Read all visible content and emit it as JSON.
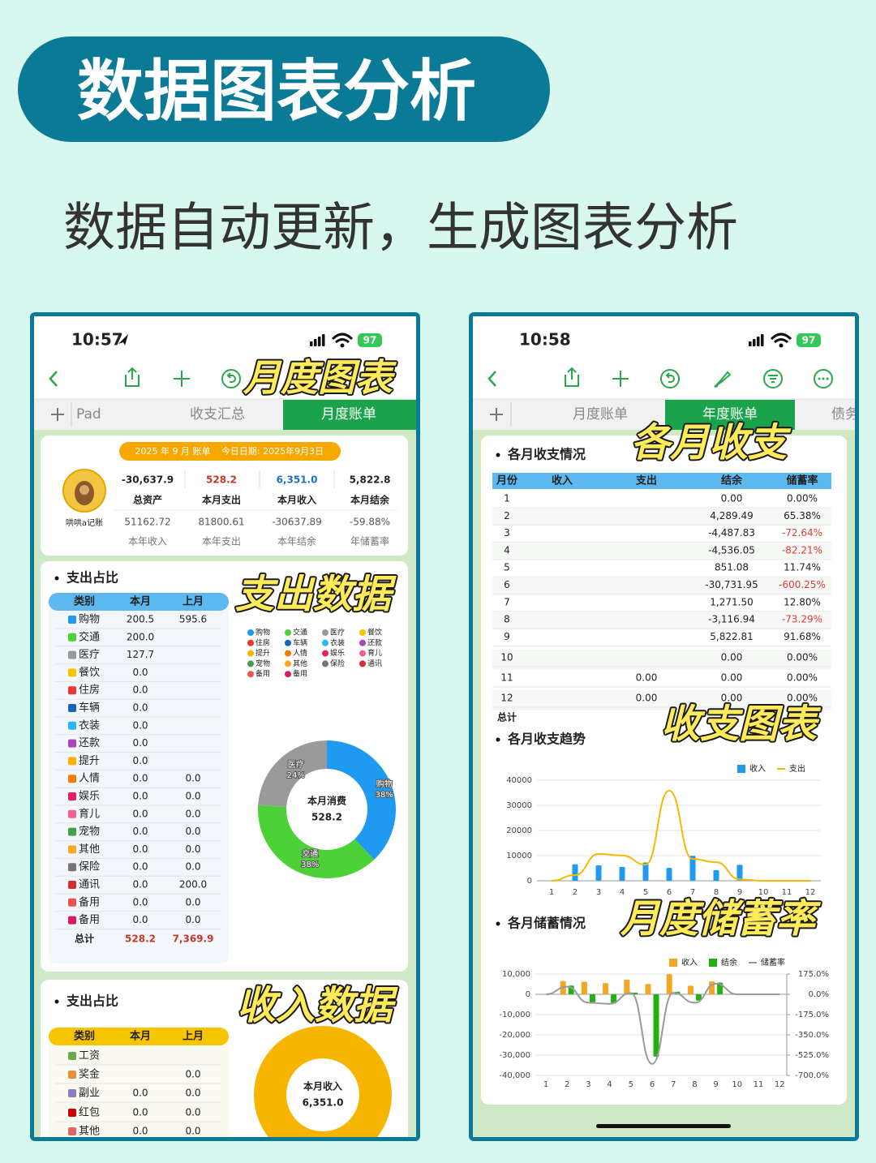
{
  "header": {
    "title": "数据图表分析",
    "subtitle": "数据自动更新，生成图表分析"
  },
  "left_phone": {
    "time": "10:57",
    "battery": "97",
    "tabs": [
      "Pad",
      "收支汇总",
      "月度账单"
    ],
    "callouts": [
      "月度图表",
      "支出数据",
      "收入数据"
    ],
    "summary": {
      "banner": "2025 年 9 月 账单",
      "today": "今日日期: 2025年9月3日",
      "app_name": "哄哄a记账",
      "stats": [
        {
          "value": "-30,637.9",
          "label": "总资产"
        },
        {
          "value": "528.2",
          "label": "本月支出"
        },
        {
          "value": "6,351.0",
          "label": "本月收入"
        },
        {
          "value": "5,822.8",
          "label": "本月结余"
        },
        {
          "value": "51162.72",
          "label": "本年收入"
        },
        {
          "value": "81800.61",
          "label": "本年支出"
        },
        {
          "value": "-30637.89",
          "label": "本年结余"
        },
        {
          "value": "-59.88%",
          "label": "年储蓄率"
        }
      ]
    },
    "expense": {
      "title": "支出占比",
      "columns": [
        "类别",
        "本月",
        "上月"
      ],
      "rows": [
        [
          "购物",
          "200.5",
          "595.6"
        ],
        [
          "交通",
          "200.0",
          null
        ],
        [
          "医疗",
          "127.7",
          null
        ],
        [
          "餐饮",
          "0.0",
          null
        ],
        [
          "住房",
          "0.0",
          null
        ],
        [
          "车辆",
          "0.0",
          null
        ],
        [
          "衣装",
          "0.0",
          null
        ],
        [
          "还款",
          "0.0",
          null
        ],
        [
          "提升",
          "0.0",
          null
        ],
        [
          "人情",
          "0.0",
          "0.0"
        ],
        [
          "娱乐",
          "0.0",
          "0.0"
        ],
        [
          "育儿",
          "0.0",
          "0.0"
        ],
        [
          "宠物",
          "0.0",
          "0.0"
        ],
        [
          "其他",
          "0.0",
          "0.0"
        ],
        [
          "保险",
          "0.0",
          "0.0"
        ],
        [
          "通讯",
          "0.0",
          "200.0"
        ],
        [
          "备用",
          "0.0",
          "0.0"
        ],
        [
          "备用",
          "0.0",
          "0.0"
        ]
      ],
      "total": [
        "总计",
        "528.2",
        "7,369.9"
      ]
    },
    "income": {
      "title": "支出占比",
      "columns": [
        "类别",
        "本月",
        "上月"
      ],
      "rows": [
        [
          "工资",
          null,
          null
        ],
        [
          "奖金",
          null,
          "0.0"
        ],
        [
          "副业",
          "0.0",
          "0.0"
        ],
        [
          "红包",
          "0.0",
          "0.0"
        ],
        [
          "其他",
          "0.0",
          "0.0"
        ]
      ]
    }
  },
  "right_phone": {
    "time": "10:58",
    "battery": "97",
    "tabs": [
      "月度账单",
      "年度账单",
      "债务"
    ],
    "callouts": [
      "各月收支",
      "收支图表",
      "月度储蓄率"
    ],
    "table": {
      "title": "各月收支情况",
      "columns": [
        "月份",
        "收入",
        "支出",
        "结余",
        "储蓄率"
      ],
      "rows": [
        [
          "1",
          null,
          null,
          "0.00",
          "0.00%"
        ],
        [
          "2",
          null,
          null,
          "4,289.49",
          "65.38%"
        ],
        [
          "3",
          null,
          null,
          "-4,487.83",
          "-72.64%"
        ],
        [
          "4",
          null,
          null,
          "-4,536.05",
          "-82.21%"
        ],
        [
          "5",
          null,
          null,
          "851.08",
          "11.74%"
        ],
        [
          "6",
          null,
          null,
          "-30,731.95",
          "-600.25%"
        ],
        [
          "7",
          null,
          null,
          "1,271.50",
          "12.80%"
        ],
        [
          "8",
          null,
          null,
          "-3,116.94",
          "-73.29%"
        ],
        [
          "9",
          null,
          null,
          "5,822.81",
          "91.68%"
        ],
        [
          "10",
          null,
          null,
          "0.00",
          "0.00%"
        ],
        [
          "11",
          null,
          "0.00",
          "0.00",
          "0.00%"
        ],
        [
          "12",
          null,
          "0.00",
          "0.00",
          "0.00%"
        ]
      ],
      "total_label": "总计"
    }
  },
  "chart_data": [
    {
      "type": "pie",
      "center_label": "本月消费",
      "center_value": "528.2",
      "categories": [
        "购物",
        "交通",
        "医疗"
      ],
      "values": [
        38,
        38,
        24
      ],
      "value_labels": [
        "38%",
        "38%",
        "24%"
      ],
      "colors": [
        "#1e9bf0",
        "#4cd137",
        "#9a9a9a"
      ],
      "legend": [
        {
          "name": "购物",
          "color": "#1e9bf0"
        },
        {
          "name": "交通",
          "color": "#4cd137"
        },
        {
          "name": "医疗",
          "color": "#9a9a9a"
        },
        {
          "name": "餐饮",
          "color": "#f5c400"
        },
        {
          "name": "住房",
          "color": "#e53935"
        },
        {
          "name": "车辆",
          "color": "#1565c0"
        },
        {
          "name": "衣装",
          "color": "#29b6f6"
        },
        {
          "name": "还款",
          "color": "#ab47bc"
        },
        {
          "name": "提升",
          "color": "#ffb300"
        },
        {
          "name": "人情",
          "color": "#f57c00"
        },
        {
          "name": "娱乐",
          "color": "#e91e63"
        },
        {
          "name": "育儿",
          "color": "#f06292"
        },
        {
          "name": "宠物",
          "color": "#43a047"
        },
        {
          "name": "其他",
          "color": "#f9a825"
        },
        {
          "name": "保险",
          "color": "#757575"
        },
        {
          "name": "通讯",
          "color": "#d32f2f"
        },
        {
          "name": "备用",
          "color": "#ef5350"
        },
        {
          "name": "备用",
          "color": "#d81b60"
        }
      ]
    },
    {
      "type": "pie",
      "center_label": "本月收入",
      "center_value": "6,351.0",
      "values": [
        100
      ],
      "colors": [
        "#f7b500"
      ]
    },
    {
      "type": "bar",
      "title": "各月收支趋势",
      "categories": [
        "1",
        "2",
        "3",
        "4",
        "5",
        "6",
        "7",
        "8",
        "9",
        "10",
        "11",
        "12"
      ],
      "series": [
        {
          "name": "收入",
          "type": "bar",
          "color": "#1e9bf0",
          "values": [
            0,
            6560,
            6178,
            5518,
            7249,
            5120,
            9934,
            4253,
            6351,
            0,
            0,
            0
          ]
        },
        {
          "name": "支出",
          "type": "line",
          "color": "#f5b800",
          "values": [
            0,
            2271,
            10666,
            10054,
            6398,
            35852,
            8663,
            7370,
            528,
            0,
            0,
            0
          ]
        }
      ],
      "ylim": [
        0,
        40000
      ],
      "yticks": [
        0,
        10000,
        20000,
        30000,
        40000
      ],
      "grid": true
    },
    {
      "type": "bar",
      "title": "各月储蓄情况",
      "categories": [
        "1",
        "2",
        "3",
        "4",
        "5",
        "6",
        "7",
        "8",
        "9",
        "10",
        "11",
        "12"
      ],
      "series": [
        {
          "name": "收入",
          "type": "bar",
          "color": "#f5a623",
          "values": [
            0,
            6560,
            6178,
            5518,
            7249,
            5120,
            9934,
            4253,
            6351,
            0,
            0,
            0
          ]
        },
        {
          "name": "结余",
          "type": "bar",
          "color": "#22b014",
          "values": [
            0,
            4289.49,
            -4487.83,
            -4536.05,
            851.08,
            -30731.95,
            1271.5,
            -3116.94,
            5822.81,
            0,
            0,
            0
          ]
        },
        {
          "name": "储蓄率",
          "type": "line",
          "axis": "y2",
          "color": "#9a9a9a",
          "values": [
            0,
            65.38,
            -72.64,
            -82.21,
            11.74,
            -600.25,
            12.8,
            -73.29,
            91.68,
            0,
            0,
            0
          ]
        }
      ],
      "ylim": [
        -40000,
        10000
      ],
      "yticks": [
        {
          "value": 10000,
          "label": "10,000"
        },
        0,
        {
          "value": -10000,
          "label": "-10,000"
        },
        {
          "value": -20000,
          "label": "-20,000"
        },
        {
          "value": -30000,
          "label": "-30,000"
        },
        {
          "value": -40000,
          "label": "-40,000"
        }
      ],
      "y2lim": [
        -700,
        175
      ],
      "y2ticks": [
        {
          "value": 175,
          "label": "175.0%"
        },
        {
          "value": 0,
          "label": "0.0%"
        },
        {
          "value": -175,
          "label": "-175.0%"
        },
        {
          "value": -350,
          "label": "-350.0%"
        },
        {
          "value": -525,
          "label": "-525.0%"
        },
        {
          "value": -700,
          "label": "-700.0%"
        }
      ],
      "grid": true
    }
  ]
}
